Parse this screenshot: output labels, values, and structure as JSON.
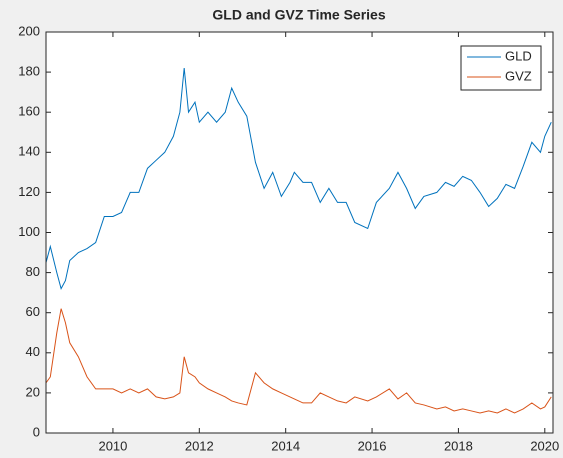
{
  "chart_data": {
    "type": "line",
    "title": "GLD and GVZ Time Series",
    "x": [
      2008.45,
      2008.55,
      2008.7,
      2008.8,
      2008.9,
      2009.0,
      2009.2,
      2009.4,
      2009.6,
      2009.8,
      2010.0,
      2010.2,
      2010.4,
      2010.6,
      2010.8,
      2011.0,
      2011.2,
      2011.4,
      2011.55,
      2011.65,
      2011.75,
      2011.9,
      2012.0,
      2012.2,
      2012.4,
      2012.6,
      2012.75,
      2012.9,
      2013.1,
      2013.3,
      2013.5,
      2013.7,
      2013.9,
      2014.1,
      2014.2,
      2014.4,
      2014.6,
      2014.8,
      2015.0,
      2015.2,
      2015.4,
      2015.6,
      2015.9,
      2016.1,
      2016.4,
      2016.6,
      2016.8,
      2017.0,
      2017.2,
      2017.5,
      2017.7,
      2017.9,
      2018.1,
      2018.3,
      2018.5,
      2018.7,
      2018.9,
      2019.1,
      2019.3,
      2019.5,
      2019.7,
      2019.9,
      2020.0,
      2020.15
    ],
    "series": [
      {
        "name": "GLD",
        "color": "#0072bd",
        "values": [
          85,
          93,
          80,
          72,
          76,
          86,
          90,
          92,
          95,
          108,
          108,
          110,
          120,
          120,
          132,
          136,
          140,
          148,
          160,
          182,
          160,
          165,
          155,
          160,
          155,
          160,
          172,
          165,
          158,
          135,
          122,
          130,
          118,
          125,
          130,
          125,
          125,
          115,
          122,
          115,
          115,
          105,
          102,
          115,
          122,
          130,
          122,
          112,
          118,
          120,
          125,
          123,
          128,
          126,
          120,
          113,
          117,
          124,
          122,
          133,
          145,
          140,
          148,
          155
        ]
      },
      {
        "name": "GVZ",
        "color": "#d95319",
        "values": [
          25,
          28,
          50,
          62,
          55,
          45,
          38,
          28,
          22,
          22,
          22,
          20,
          22,
          20,
          22,
          18,
          17,
          18,
          20,
          38,
          30,
          28,
          25,
          22,
          20,
          18,
          16,
          15,
          14,
          30,
          25,
          22,
          20,
          18,
          17,
          15,
          15,
          20,
          18,
          16,
          15,
          18,
          16,
          18,
          22,
          17,
          20,
          15,
          14,
          12,
          13,
          11,
          12,
          11,
          10,
          11,
          10,
          12,
          10,
          12,
          15,
          12,
          13,
          18
        ]
      }
    ],
    "xlim": [
      2008.45,
      2020.19
    ],
    "xticks": [
      2010,
      2012,
      2014,
      2016,
      2018,
      2020
    ],
    "ylim": [
      0,
      200
    ],
    "yticks": [
      0,
      20,
      40,
      60,
      80,
      100,
      120,
      140,
      160,
      180,
      200
    ],
    "legend": "upper right",
    "grid": false
  }
}
